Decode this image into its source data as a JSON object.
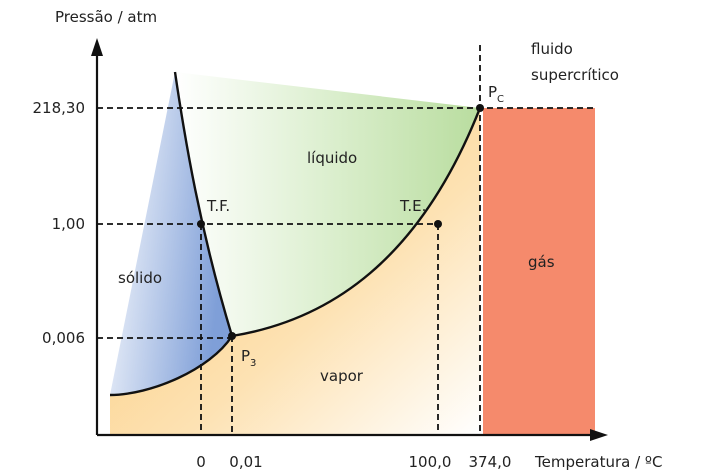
{
  "axes": {
    "y_label": "Pressão / atm",
    "x_label": "Temperatura / ºC",
    "y_ticks": [
      "218,30",
      "1,00",
      "0,006"
    ],
    "x_ticks": [
      "0",
      "0,01",
      "100,0",
      "374,0"
    ]
  },
  "regions": [
    "sólido",
    "líquido",
    "vapor",
    "gás"
  ],
  "supercritical": [
    "fluido",
    "supercrítico"
  ],
  "points": [
    {
      "label": "T.F."
    },
    {
      "label": "T.E."
    },
    {
      "label": "P",
      "sub": "3"
    },
    {
      "label": "P",
      "sub": "C"
    }
  ]
}
